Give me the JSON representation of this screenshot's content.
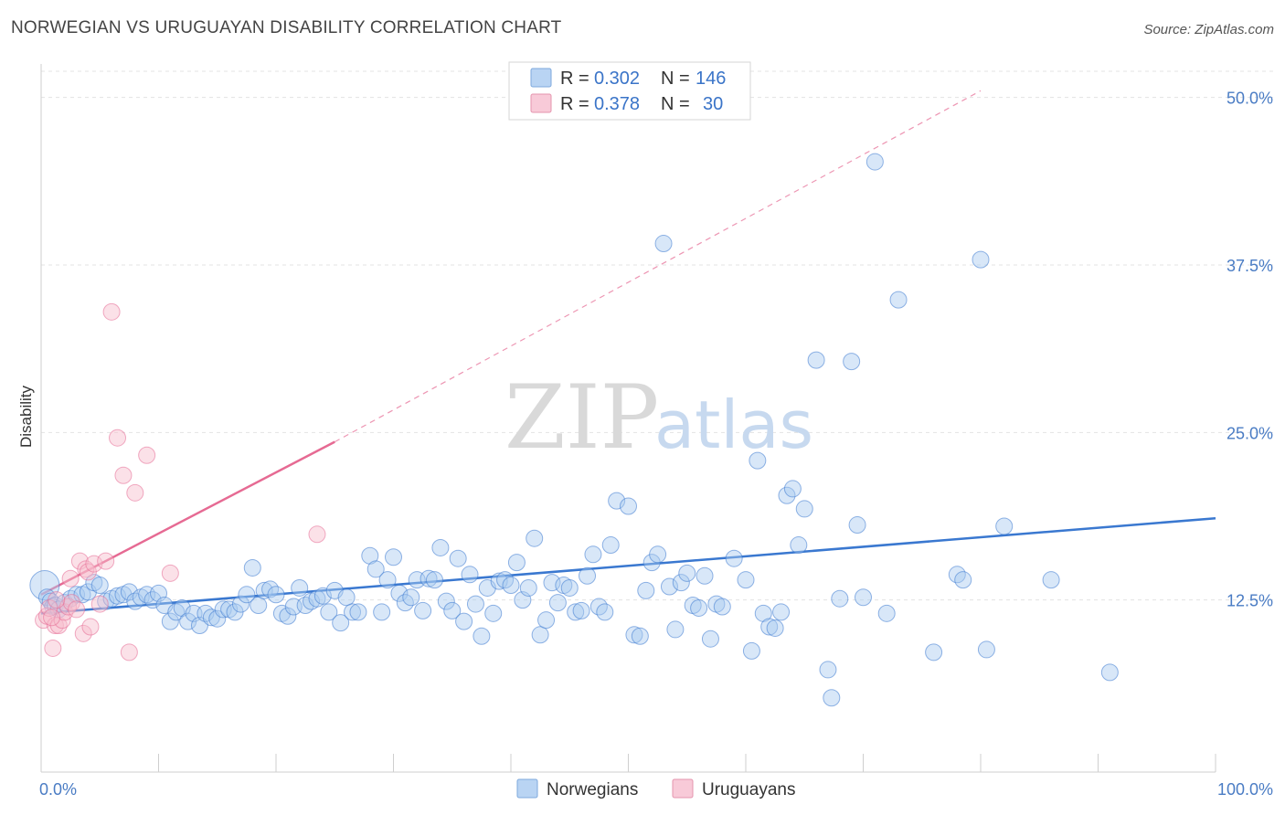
{
  "header": {
    "title": "NORWEGIAN VS URUGUAYAN DISABILITY CORRELATION CHART",
    "source": "Source: ZipAtlas.com"
  },
  "watermark": {
    "zip": "ZIP",
    "atlas": "atlas"
  },
  "legend": {
    "rows": [
      {
        "r_label": "R =",
        "r_value": "0.302",
        "n_label": "N =",
        "n_value": "146",
        "color": "#9ec3ef"
      },
      {
        "r_label": "R =",
        "r_value": "0.378",
        "n_label": "N =",
        "n_value": "30",
        "color": "#f4b6c8"
      }
    ]
  },
  "bottom_legend": {
    "items": [
      {
        "label": "Norwegians",
        "color": "#9ec3ef"
      },
      {
        "label": "Uruguayans",
        "color": "#f4b6c8"
      }
    ]
  },
  "chart_data": {
    "type": "scatter",
    "title": "NORWEGIAN VS URUGUAYAN DISABILITY CORRELATION CHART",
    "xlabel": "",
    "ylabel": "Disability",
    "xlim": [
      0,
      100
    ],
    "ylim": [
      0,
      52.5
    ],
    "x_tick_labels": [
      "0.0%",
      "100.0%"
    ],
    "y_ticks": [
      12.5,
      25.0,
      37.5,
      50.0
    ],
    "y_tick_labels": [
      "12.5%",
      "25.0%",
      "37.5%",
      "50.0%"
    ],
    "grid": true,
    "legend_position": "top-center",
    "series": [
      {
        "name": "Norwegians",
        "color": "#3a78d0",
        "fill": "#a9c9f0",
        "trend": {
          "x0": 0,
          "y0": 11.5,
          "x1": 100,
          "y1": 18.6
        },
        "points": [
          [
            0.3,
            13.6
          ],
          [
            0.5,
            12.7
          ],
          [
            0.8,
            12.4
          ],
          [
            1.0,
            12.0
          ],
          [
            1.2,
            12.1
          ],
          [
            1.5,
            11.8
          ],
          [
            2.0,
            12.3
          ],
          [
            2.5,
            12.6
          ],
          [
            3.0,
            12.9
          ],
          [
            3.5,
            12.9
          ],
          [
            4.0,
            13.1
          ],
          [
            4.5,
            13.8
          ],
          [
            5.0,
            13.6
          ],
          [
            5.5,
            12.4
          ],
          [
            6.0,
            12.6
          ],
          [
            6.5,
            12.8
          ],
          [
            7.0,
            12.9
          ],
          [
            7.5,
            13.1
          ],
          [
            8.0,
            12.4
          ],
          [
            8.5,
            12.7
          ],
          [
            9.0,
            12.9
          ],
          [
            9.5,
            12.5
          ],
          [
            10.0,
            13.0
          ],
          [
            10.5,
            12.1
          ],
          [
            11.0,
            10.9
          ],
          [
            11.5,
            11.6
          ],
          [
            12.0,
            11.9
          ],
          [
            12.5,
            10.9
          ],
          [
            13.0,
            11.5
          ],
          [
            13.5,
            10.6
          ],
          [
            14.0,
            11.5
          ],
          [
            14.5,
            11.2
          ],
          [
            15.0,
            11.1
          ],
          [
            15.5,
            11.8
          ],
          [
            16.0,
            11.8
          ],
          [
            16.5,
            11.6
          ],
          [
            17.0,
            12.2
          ],
          [
            17.5,
            12.9
          ],
          [
            18.0,
            14.9
          ],
          [
            18.5,
            12.1
          ],
          [
            19.0,
            13.2
          ],
          [
            19.5,
            13.3
          ],
          [
            20.0,
            12.9
          ],
          [
            20.5,
            11.5
          ],
          [
            21.0,
            11.3
          ],
          [
            21.5,
            12.0
          ],
          [
            22.0,
            13.4
          ],
          [
            22.5,
            12.1
          ],
          [
            23.0,
            12.4
          ],
          [
            23.5,
            12.6
          ],
          [
            24.0,
            12.8
          ],
          [
            24.5,
            11.6
          ],
          [
            25.0,
            13.2
          ],
          [
            25.5,
            10.8
          ],
          [
            26.0,
            12.7
          ],
          [
            26.5,
            11.6
          ],
          [
            27.0,
            11.6
          ],
          [
            28.0,
            15.8
          ],
          [
            28.5,
            14.8
          ],
          [
            29.0,
            11.6
          ],
          [
            29.5,
            14.0
          ],
          [
            30.0,
            15.7
          ],
          [
            30.5,
            13.0
          ],
          [
            31.0,
            12.3
          ],
          [
            31.5,
            12.7
          ],
          [
            32.0,
            14.0
          ],
          [
            32.5,
            11.7
          ],
          [
            33.0,
            14.1
          ],
          [
            33.5,
            14.0
          ],
          [
            34.0,
            16.4
          ],
          [
            34.5,
            12.4
          ],
          [
            35.0,
            11.7
          ],
          [
            35.5,
            15.6
          ],
          [
            36.0,
            10.9
          ],
          [
            36.5,
            14.4
          ],
          [
            37.0,
            12.2
          ],
          [
            37.5,
            9.8
          ],
          [
            38.0,
            13.4
          ],
          [
            38.5,
            11.5
          ],
          [
            39.0,
            13.9
          ],
          [
            39.5,
            14.0
          ],
          [
            40.0,
            13.6
          ],
          [
            40.5,
            15.3
          ],
          [
            41.0,
            12.5
          ],
          [
            41.5,
            13.4
          ],
          [
            42.0,
            17.1
          ],
          [
            42.5,
            9.9
          ],
          [
            43.0,
            11.0
          ],
          [
            43.5,
            13.8
          ],
          [
            44.0,
            12.3
          ],
          [
            44.5,
            13.6
          ],
          [
            45.0,
            13.4
          ],
          [
            45.5,
            11.6
          ],
          [
            46.0,
            11.7
          ],
          [
            46.5,
            14.3
          ],
          [
            47.0,
            15.9
          ],
          [
            47.5,
            12.0
          ],
          [
            48.0,
            11.6
          ],
          [
            48.5,
            16.6
          ],
          [
            49.0,
            19.9
          ],
          [
            50.0,
            19.5
          ],
          [
            50.5,
            9.9
          ],
          [
            51.0,
            9.8
          ],
          [
            51.5,
            13.2
          ],
          [
            52.0,
            15.3
          ],
          [
            52.5,
            15.9
          ],
          [
            53.0,
            39.1
          ],
          [
            53.5,
            13.5
          ],
          [
            54.0,
            10.3
          ],
          [
            54.5,
            13.8
          ],
          [
            55.0,
            14.5
          ],
          [
            55.5,
            12.1
          ],
          [
            56.0,
            11.9
          ],
          [
            56.5,
            14.3
          ],
          [
            57.0,
            9.6
          ],
          [
            57.5,
            12.2
          ],
          [
            58.0,
            12.0
          ],
          [
            59.0,
            15.6
          ],
          [
            60.0,
            14.0
          ],
          [
            60.5,
            8.7
          ],
          [
            61.0,
            22.9
          ],
          [
            61.5,
            11.5
          ],
          [
            62.0,
            10.5
          ],
          [
            62.5,
            10.4
          ],
          [
            63.0,
            11.6
          ],
          [
            63.5,
            20.3
          ],
          [
            64.0,
            20.8
          ],
          [
            64.5,
            16.6
          ],
          [
            65.0,
            19.3
          ],
          [
            66.0,
            30.4
          ],
          [
            67.0,
            7.3
          ],
          [
            67.3,
            5.2
          ],
          [
            68.0,
            12.6
          ],
          [
            69.0,
            30.3
          ],
          [
            69.5,
            18.1
          ],
          [
            70.0,
            12.7
          ],
          [
            71.0,
            45.2
          ],
          [
            72.0,
            11.5
          ],
          [
            73.0,
            34.9
          ],
          [
            76.0,
            8.6
          ],
          [
            78.0,
            14.4
          ],
          [
            78.5,
            14.0
          ],
          [
            80.0,
            37.9
          ],
          [
            80.5,
            8.8
          ],
          [
            82.0,
            18.0
          ],
          [
            86.0,
            14.0
          ],
          [
            91.0,
            7.1
          ]
        ]
      },
      {
        "name": "Uruguayans",
        "color": "#e66a93",
        "fill": "#f6bccd",
        "trend": {
          "x0": 0,
          "y0": 12.9,
          "x1": 25,
          "y1": 24.3,
          "dashed_to": {
            "x": 80,
            "y": 50.5
          }
        },
        "points": [
          [
            0.2,
            11.0
          ],
          [
            0.5,
            11.3
          ],
          [
            0.7,
            11.9
          ],
          [
            1.0,
            8.9
          ],
          [
            1.2,
            10.6
          ],
          [
            1.5,
            10.6
          ],
          [
            1.8,
            11.0
          ],
          [
            2.0,
            11.6
          ],
          [
            2.3,
            12.0
          ],
          [
            2.6,
            12.3
          ],
          [
            3.0,
            11.8
          ],
          [
            3.3,
            15.4
          ],
          [
            3.6,
            10.0
          ],
          [
            3.8,
            14.8
          ],
          [
            4.0,
            14.6
          ],
          [
            4.2,
            10.5
          ],
          [
            4.5,
            15.2
          ],
          [
            5.0,
            12.2
          ],
          [
            5.5,
            15.4
          ],
          [
            6.0,
            34.0
          ],
          [
            6.5,
            24.6
          ],
          [
            7.0,
            21.8
          ],
          [
            7.5,
            8.6
          ],
          [
            8.0,
            20.5
          ],
          [
            9.0,
            23.3
          ],
          [
            11.0,
            14.5
          ],
          [
            23.5,
            17.4
          ],
          [
            2.5,
            14.1
          ],
          [
            1.3,
            12.5
          ],
          [
            0.9,
            11.2
          ]
        ]
      }
    ]
  }
}
